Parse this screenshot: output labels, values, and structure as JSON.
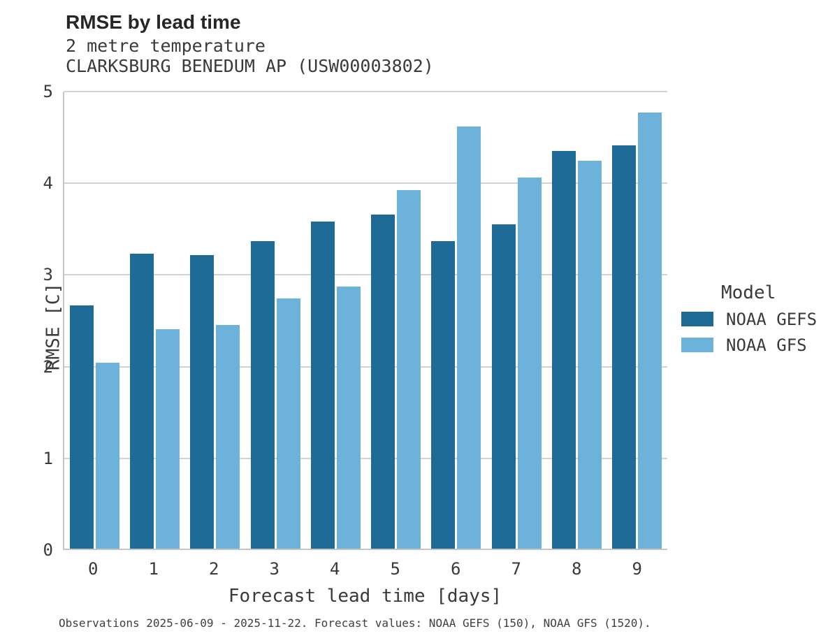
{
  "title": "RMSE by lead time",
  "subtitle_line1": "2 metre temperature",
  "subtitle_line2": "CLARKSBURG BENEDUM AP (USW00003802)",
  "caption": "Observations 2025-06-09 - 2025-11-22. Forecast values: NOAA GEFS (150), NOAA GFS (1520).",
  "colors": {
    "gefs_dark_blue": "#1d6b96",
    "gfs_light_blue": "#6cb2da",
    "gridline_gray": "#d2d2d2",
    "text_dark": "#262626"
  },
  "legend": {
    "title": "Model",
    "items": [
      {
        "label": "NOAA GEFS",
        "color": "#1d6b96"
      },
      {
        "label": "NOAA GFS",
        "color": "#6cb2da"
      }
    ]
  },
  "chart_data": {
    "type": "bar",
    "title": "RMSE by lead time",
    "subtitle": [
      "2 metre temperature",
      "CLARKSBURG BENEDUM AP (USW00003802)"
    ],
    "xlabel": "Forecast lead time [days]",
    "ylabel": "RMSE [C]",
    "categories": [
      "0",
      "1",
      "2",
      "3",
      "4",
      "5",
      "6",
      "7",
      "8",
      "9"
    ],
    "series": [
      {
        "name": "NOAA GEFS",
        "color": "#1d6b96",
        "values": [
          2.65,
          3.22,
          3.2,
          3.35,
          3.57,
          3.64,
          3.35,
          3.54,
          4.34,
          4.4
        ]
      },
      {
        "name": "NOAA GFS",
        "color": "#6cb2da",
        "values": [
          2.03,
          2.39,
          2.44,
          2.73,
          2.86,
          3.91,
          4.6,
          4.05,
          4.23,
          4.76
        ]
      }
    ],
    "ylim": [
      0,
      5
    ],
    "yticks": [
      0,
      1,
      2,
      3,
      4,
      5
    ],
    "grid": true,
    "legend_title": "Model",
    "legend_position": "right"
  }
}
